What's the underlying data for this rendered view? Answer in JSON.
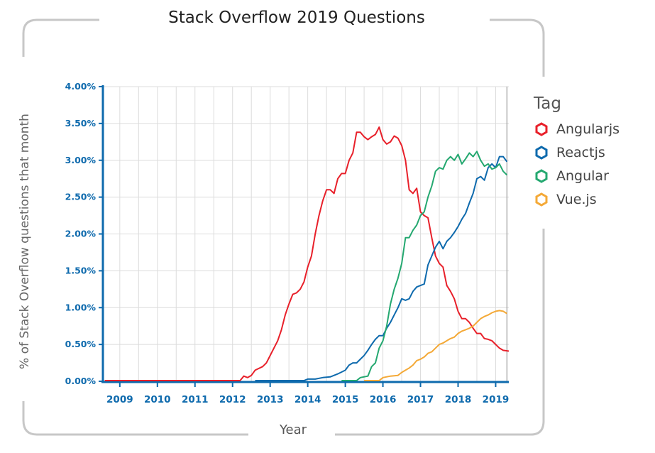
{
  "chart_data": {
    "type": "line",
    "title": "Stack Overflow 2019 Questions",
    "xlabel": "Year",
    "ylabel": "% of Stack Overflow questions that month",
    "xlim": [
      2008.55,
      2019.35
    ],
    "ylim": [
      0,
      4.0
    ],
    "xticks": [
      2009,
      2010,
      2011,
      2012,
      2013,
      2014,
      2015,
      2016,
      2017,
      2018,
      2019
    ],
    "xtick_labels": [
      "2009",
      "2010",
      "2011",
      "2012",
      "2013",
      "2014",
      "2015",
      "2016",
      "2017",
      "2018",
      "2019"
    ],
    "yticks": [
      0,
      0.5,
      1.0,
      1.5,
      2.0,
      2.5,
      3.0,
      3.5,
      4.0
    ],
    "ytick_labels": [
      "0.00%",
      "0.50%",
      "1.00%",
      "1.50%",
      "2.00%",
      "2.50%",
      "3.00%",
      "3.50%",
      "4.00%"
    ],
    "grid": true,
    "legend_title": "Tag",
    "legend_position": "right",
    "series": [
      {
        "name": "Angularjs",
        "color": "#e8202a",
        "points": [
          [
            2008.6,
            0.01
          ],
          [
            2012.2,
            0.01
          ],
          [
            2012.3,
            0.07
          ],
          [
            2012.4,
            0.05
          ],
          [
            2012.5,
            0.08
          ],
          [
            2012.6,
            0.15
          ],
          [
            2012.8,
            0.2
          ],
          [
            2012.9,
            0.25
          ],
          [
            2013.0,
            0.35
          ],
          [
            2013.1,
            0.45
          ],
          [
            2013.2,
            0.55
          ],
          [
            2013.3,
            0.7
          ],
          [
            2013.4,
            0.9
          ],
          [
            2013.5,
            1.05
          ],
          [
            2013.6,
            1.18
          ],
          [
            2013.7,
            1.2
          ],
          [
            2013.8,
            1.25
          ],
          [
            2013.9,
            1.35
          ],
          [
            2014.0,
            1.55
          ],
          [
            2014.1,
            1.7
          ],
          [
            2014.2,
            2.0
          ],
          [
            2014.3,
            2.25
          ],
          [
            2014.4,
            2.45
          ],
          [
            2014.5,
            2.6
          ],
          [
            2014.6,
            2.6
          ],
          [
            2014.7,
            2.55
          ],
          [
            2014.8,
            2.75
          ],
          [
            2014.9,
            2.82
          ],
          [
            2015.0,
            2.82
          ],
          [
            2015.1,
            3.0
          ],
          [
            2015.2,
            3.1
          ],
          [
            2015.3,
            3.38
          ],
          [
            2015.4,
            3.38
          ],
          [
            2015.5,
            3.32
          ],
          [
            2015.6,
            3.28
          ],
          [
            2015.7,
            3.32
          ],
          [
            2015.8,
            3.35
          ],
          [
            2015.9,
            3.45
          ],
          [
            2016.0,
            3.28
          ],
          [
            2016.1,
            3.22
          ],
          [
            2016.2,
            3.25
          ],
          [
            2016.3,
            3.33
          ],
          [
            2016.4,
            3.3
          ],
          [
            2016.5,
            3.2
          ],
          [
            2016.6,
            3.0
          ],
          [
            2016.7,
            2.6
          ],
          [
            2016.8,
            2.55
          ],
          [
            2016.9,
            2.62
          ],
          [
            2017.0,
            2.3
          ],
          [
            2017.1,
            2.25
          ],
          [
            2017.2,
            2.22
          ],
          [
            2017.3,
            1.95
          ],
          [
            2017.4,
            1.7
          ],
          [
            2017.5,
            1.6
          ],
          [
            2017.6,
            1.55
          ],
          [
            2017.7,
            1.3
          ],
          [
            2017.8,
            1.22
          ],
          [
            2017.9,
            1.12
          ],
          [
            2018.0,
            0.95
          ],
          [
            2018.1,
            0.85
          ],
          [
            2018.2,
            0.85
          ],
          [
            2018.3,
            0.8
          ],
          [
            2018.4,
            0.72
          ],
          [
            2018.5,
            0.65
          ],
          [
            2018.6,
            0.65
          ],
          [
            2018.7,
            0.58
          ],
          [
            2018.8,
            0.57
          ],
          [
            2018.9,
            0.55
          ],
          [
            2019.0,
            0.5
          ],
          [
            2019.1,
            0.45
          ],
          [
            2019.2,
            0.42
          ],
          [
            2019.35,
            0.41
          ]
        ]
      },
      {
        "name": "Reactjs",
        "color": "#0e6aad",
        "points": [
          [
            2012.6,
            0.01
          ],
          [
            2013.9,
            0.01
          ],
          [
            2014.0,
            0.03
          ],
          [
            2014.2,
            0.03
          ],
          [
            2014.4,
            0.05
          ],
          [
            2014.6,
            0.06
          ],
          [
            2014.8,
            0.1
          ],
          [
            2015.0,
            0.15
          ],
          [
            2015.1,
            0.22
          ],
          [
            2015.2,
            0.25
          ],
          [
            2015.3,
            0.25
          ],
          [
            2015.4,
            0.3
          ],
          [
            2015.5,
            0.35
          ],
          [
            2015.6,
            0.42
          ],
          [
            2015.7,
            0.5
          ],
          [
            2015.8,
            0.57
          ],
          [
            2015.9,
            0.62
          ],
          [
            2016.0,
            0.62
          ],
          [
            2016.1,
            0.72
          ],
          [
            2016.2,
            0.8
          ],
          [
            2016.3,
            0.9
          ],
          [
            2016.4,
            1.0
          ],
          [
            2016.5,
            1.12
          ],
          [
            2016.6,
            1.1
          ],
          [
            2016.7,
            1.12
          ],
          [
            2016.8,
            1.22
          ],
          [
            2016.9,
            1.28
          ],
          [
            2017.0,
            1.3
          ],
          [
            2017.1,
            1.32
          ],
          [
            2017.2,
            1.58
          ],
          [
            2017.3,
            1.7
          ],
          [
            2017.4,
            1.82
          ],
          [
            2017.5,
            1.9
          ],
          [
            2017.6,
            1.8
          ],
          [
            2017.7,
            1.9
          ],
          [
            2017.8,
            1.95
          ],
          [
            2017.9,
            2.02
          ],
          [
            2018.0,
            2.1
          ],
          [
            2018.1,
            2.2
          ],
          [
            2018.2,
            2.28
          ],
          [
            2018.3,
            2.42
          ],
          [
            2018.4,
            2.55
          ],
          [
            2018.5,
            2.75
          ],
          [
            2018.6,
            2.78
          ],
          [
            2018.7,
            2.73
          ],
          [
            2018.8,
            2.9
          ],
          [
            2018.9,
            2.95
          ],
          [
            2019.0,
            2.9
          ],
          [
            2019.1,
            3.05
          ],
          [
            2019.2,
            3.05
          ],
          [
            2019.3,
            2.98
          ]
        ]
      },
      {
        "name": "Angular",
        "color": "#24a870",
        "points": [
          [
            2014.9,
            0.01
          ],
          [
            2015.3,
            0.01
          ],
          [
            2015.4,
            0.05
          ],
          [
            2015.6,
            0.07
          ],
          [
            2015.7,
            0.2
          ],
          [
            2015.8,
            0.25
          ],
          [
            2015.9,
            0.45
          ],
          [
            2016.0,
            0.55
          ],
          [
            2016.1,
            0.75
          ],
          [
            2016.2,
            1.05
          ],
          [
            2016.3,
            1.25
          ],
          [
            2016.4,
            1.4
          ],
          [
            2016.5,
            1.6
          ],
          [
            2016.6,
            1.95
          ],
          [
            2016.7,
            1.95
          ],
          [
            2016.8,
            2.05
          ],
          [
            2016.9,
            2.12
          ],
          [
            2017.0,
            2.25
          ],
          [
            2017.1,
            2.3
          ],
          [
            2017.2,
            2.5
          ],
          [
            2017.3,
            2.65
          ],
          [
            2017.4,
            2.85
          ],
          [
            2017.5,
            2.9
          ],
          [
            2017.6,
            2.88
          ],
          [
            2017.7,
            3.0
          ],
          [
            2017.8,
            3.05
          ],
          [
            2017.9,
            3.0
          ],
          [
            2018.0,
            3.08
          ],
          [
            2018.1,
            2.95
          ],
          [
            2018.2,
            3.02
          ],
          [
            2018.3,
            3.1
          ],
          [
            2018.4,
            3.05
          ],
          [
            2018.5,
            3.12
          ],
          [
            2018.6,
            3.0
          ],
          [
            2018.7,
            2.92
          ],
          [
            2018.8,
            2.95
          ],
          [
            2018.9,
            2.88
          ],
          [
            2019.0,
            2.9
          ],
          [
            2019.1,
            2.95
          ],
          [
            2019.2,
            2.85
          ],
          [
            2019.3,
            2.8
          ]
        ]
      },
      {
        "name": "Vue.js",
        "color": "#f4a937",
        "points": [
          [
            2015.5,
            0.01
          ],
          [
            2015.9,
            0.01
          ],
          [
            2016.0,
            0.05
          ],
          [
            2016.2,
            0.07
          ],
          [
            2016.4,
            0.08
          ],
          [
            2016.5,
            0.12
          ],
          [
            2016.6,
            0.15
          ],
          [
            2016.7,
            0.18
          ],
          [
            2016.8,
            0.22
          ],
          [
            2016.9,
            0.28
          ],
          [
            2017.0,
            0.3
          ],
          [
            2017.1,
            0.33
          ],
          [
            2017.2,
            0.38
          ],
          [
            2017.3,
            0.4
          ],
          [
            2017.4,
            0.45
          ],
          [
            2017.5,
            0.5
          ],
          [
            2017.6,
            0.52
          ],
          [
            2017.7,
            0.55
          ],
          [
            2017.8,
            0.58
          ],
          [
            2017.9,
            0.6
          ],
          [
            2018.0,
            0.65
          ],
          [
            2018.1,
            0.68
          ],
          [
            2018.2,
            0.7
          ],
          [
            2018.3,
            0.72
          ],
          [
            2018.4,
            0.75
          ],
          [
            2018.5,
            0.8
          ],
          [
            2018.6,
            0.85
          ],
          [
            2018.7,
            0.88
          ],
          [
            2018.8,
            0.9
          ],
          [
            2018.9,
            0.93
          ],
          [
            2019.0,
            0.95
          ],
          [
            2019.1,
            0.96
          ],
          [
            2019.2,
            0.95
          ],
          [
            2019.3,
            0.92
          ]
        ]
      }
    ]
  }
}
